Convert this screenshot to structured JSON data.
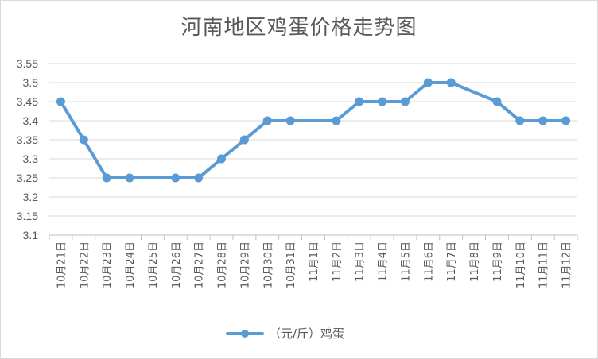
{
  "chart_data": {
    "type": "line",
    "title": "河南地区鸡蛋价格走势图",
    "categories": [
      "10月21日",
      "10月22日",
      "10月23日",
      "10月24日",
      "10月25日",
      "10月26日",
      "10月27日",
      "10月28日",
      "10月29日",
      "10月30日",
      "10月31日",
      "11月1日",
      "11月2日",
      "11月3日",
      "11月4日",
      "11月5日",
      "11月6日",
      "11月7日",
      "11月8日",
      "11月9日",
      "11月10日",
      "11月11日",
      "11月12日"
    ],
    "series": [
      {
        "name": "（元/斤）鸡蛋",
        "values": [
          3.45,
          3.35,
          3.25,
          3.25,
          null,
          3.25,
          3.25,
          3.3,
          3.35,
          3.4,
          3.4,
          null,
          3.4,
          3.45,
          3.45,
          3.45,
          3.5,
          3.5,
          null,
          3.45,
          3.4,
          3.4,
          3.4
        ]
      }
    ],
    "yticks": [
      "3.1",
      "3.15",
      "3.2",
      "3.25",
      "3.3",
      "3.35",
      "3.4",
      "3.45",
      "3.5",
      "3.55"
    ],
    "ylim": [
      3.1,
      3.55
    ],
    "grid": true,
    "legend": "bottom",
    "colors": {
      "line": "#5b9bd5",
      "grid": "#d9d9d9",
      "axis": "#bfbfbf"
    }
  }
}
